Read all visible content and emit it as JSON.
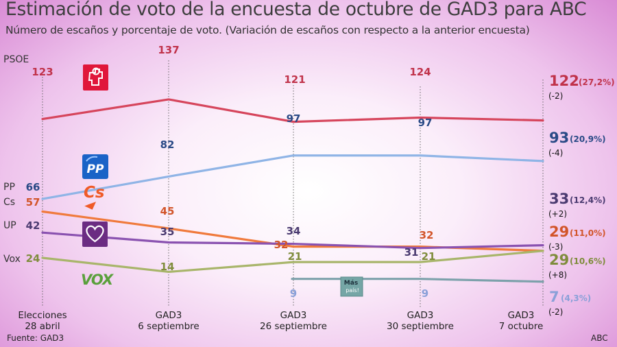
{
  "title": "Estimación de voto de la encuesta de octubre de GAD3 para ABC",
  "subtitle": "Número de escaños y porcentaje de voto. (Variación de escaños con respecto a la anterior encuesta)",
  "source": "Fuente: GAD3",
  "brand": "ABC",
  "chart_data": {
    "type": "line",
    "categories": [
      [
        "Elecciones",
        "28 abril"
      ],
      [
        "GAD3",
        "6 septiembre"
      ],
      [
        "GAD3",
        "26 septiembre"
      ],
      [
        "GAD3",
        "30 septiembre"
      ],
      [
        "GAD3",
        "7 octubre"
      ]
    ],
    "grid": "vertical dotted lines at each category",
    "series": [
      {
        "name": "PSOE",
        "label": "PSOE",
        "color": "#d6455c",
        "label_color": "#c0324a",
        "values": [
          123,
          137,
          121,
          124,
          122
        ],
        "end": {
          "value": "122",
          "pct": "(27,2%)",
          "change": "(-2)"
        },
        "icon": "psoe-rose-logo-icon"
      },
      {
        "name": "PP",
        "label": "PP",
        "color": "#8fb4e6",
        "label_color": "#2a4a86",
        "values": [
          66,
          82,
          97,
          97,
          93
        ],
        "end": {
          "value": "93",
          "pct": "(20,9%)",
          "change": "(-4)"
        },
        "icon": "pp-logo-icon",
        "icon_text": "PP"
      },
      {
        "name": "Cs",
        "label": "Cs",
        "color": "#f07a3c",
        "label_color": "#d2552a",
        "values": [
          57,
          45,
          32,
          32,
          29
        ],
        "end": {
          "value": "29",
          "pct": "(11,0%)",
          "change": "(-3)"
        },
        "icon": "cs-logo-icon",
        "icon_text": "Cs"
      },
      {
        "name": "UP",
        "label": "UP",
        "color": "#8a52b0",
        "label_color": "#4a3a70",
        "values": [
          42,
          35,
          34,
          31,
          33
        ],
        "end": {
          "value": "33",
          "pct": "(12,4%)",
          "change": "(+2)"
        },
        "icon": "up-heart-logo-icon"
      },
      {
        "name": "Vox",
        "label": "Vox",
        "color": "#a8b56a",
        "label_color": "#7f8c3c",
        "values": [
          24,
          14,
          21,
          21,
          29
        ],
        "end": {
          "value": "29",
          "pct": "(10,6%)",
          "change": "(+8)"
        },
        "icon": "vox-logo-icon",
        "icon_text": "VOX"
      },
      {
        "name": "Más País",
        "label": "",
        "color": "#7da1ab",
        "label_color": "#8aa0d8",
        "values": [
          null,
          null,
          9,
          9,
          7
        ],
        "end": {
          "value": "7",
          "pct": "(4,3%)",
          "change": "(-2)"
        },
        "icon": "mas-pais-logo-icon",
        "icon_text": [
          "Más",
          "país!"
        ]
      }
    ]
  }
}
